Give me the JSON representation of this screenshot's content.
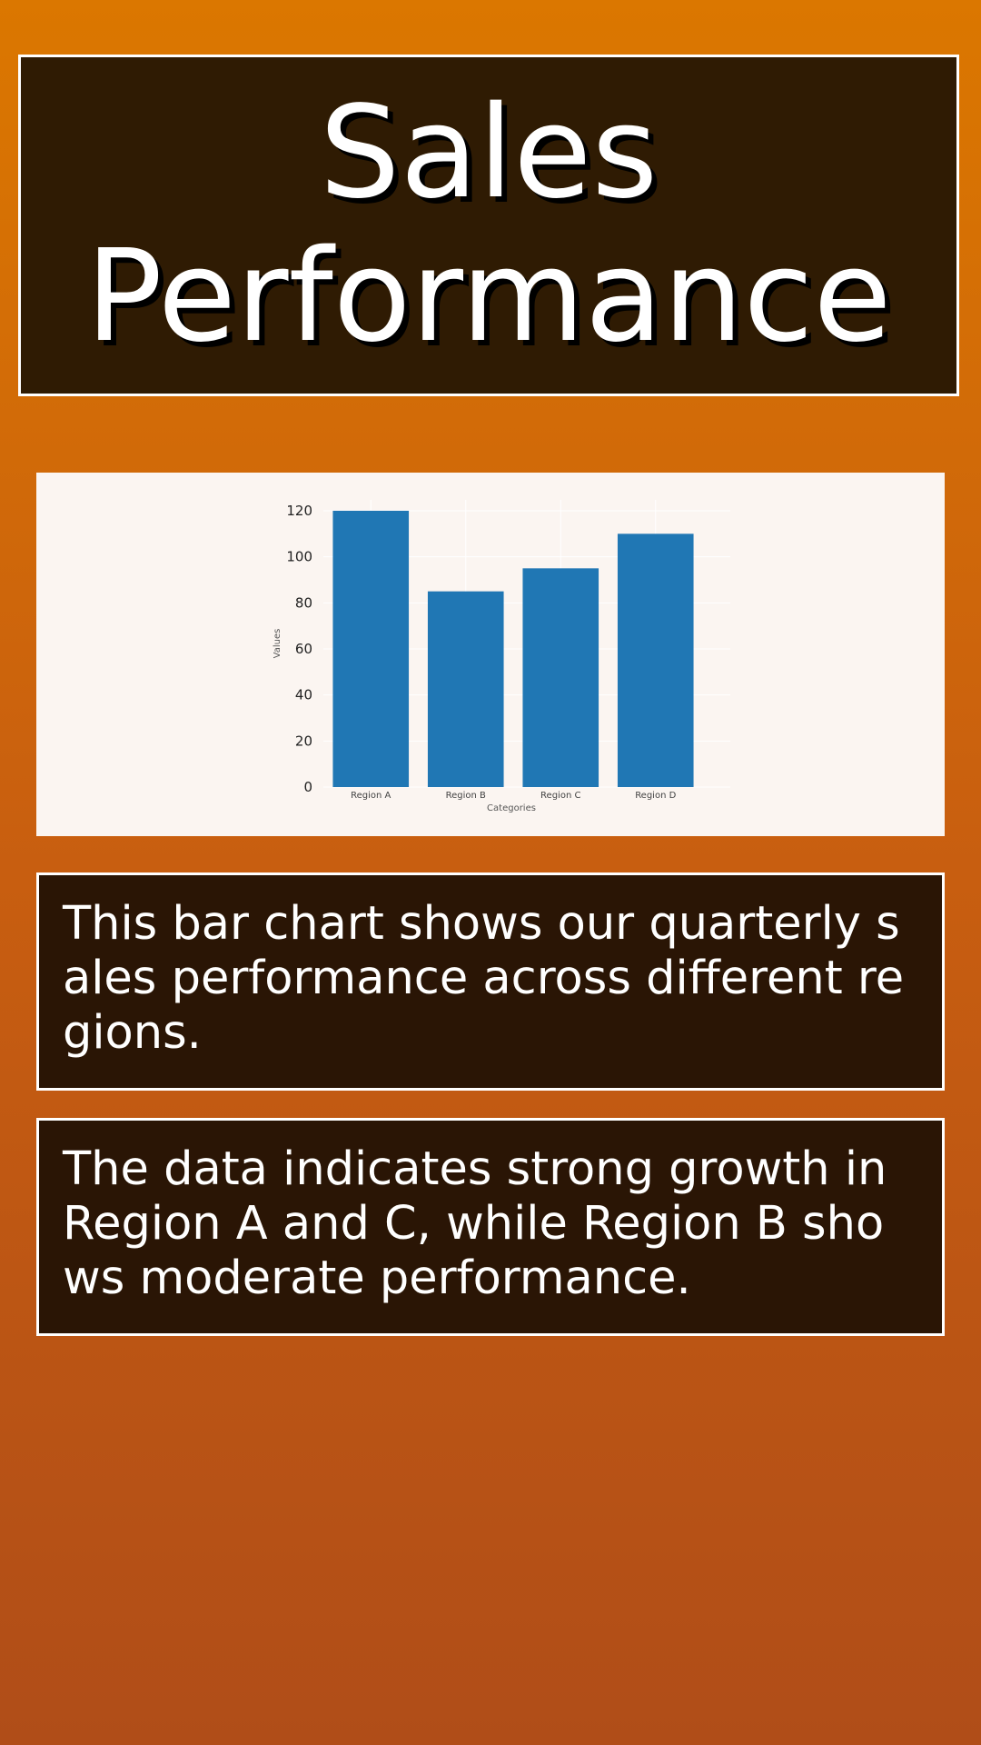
{
  "header": {
    "title_line_1": "Sales",
    "title_line_2": "Performance"
  },
  "chart_data": {
    "type": "bar",
    "categories": [
      "Region A",
      "Region B",
      "Region C",
      "Region D"
    ],
    "values": [
      120,
      85,
      95,
      110
    ],
    "title": "",
    "xlabel": "Categories",
    "ylabel": "Values",
    "ylim": [
      0,
      120
    ],
    "yticks": [
      0,
      20,
      40,
      60,
      80,
      100,
      120
    ],
    "grid": true,
    "bar_color": "#2077b4"
  },
  "paragraphs": [
    "This bar chart shows our quarterly sales performance across different regions.",
    "The data indicates strong growth in Region A and C, while Region B shows moderate performance."
  ],
  "colors": {
    "panel_background": "#2f1b03",
    "chart_background": "#fbf5f1",
    "border": "#ffffff"
  }
}
